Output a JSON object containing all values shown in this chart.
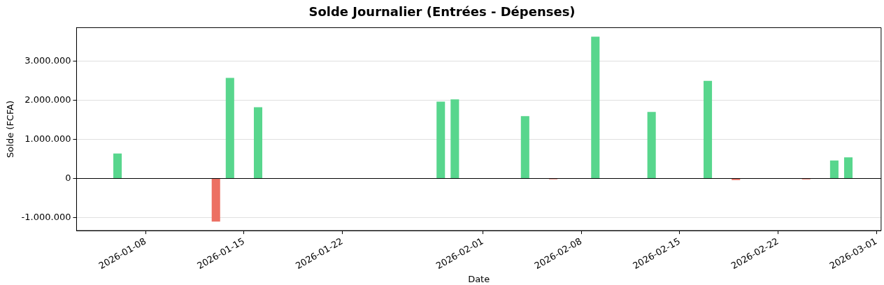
{
  "chart_data": {
    "type": "bar",
    "title": "Solde Journalier (Entrées - Dépenses)",
    "xlabel": "Date",
    "ylabel": "Solde (FCFA)",
    "x": [
      "2026-01-06",
      "2026-01-13",
      "2026-01-14",
      "2026-01-16",
      "2026-01-29",
      "2026-01-30",
      "2026-02-04",
      "2026-02-06",
      "2026-02-09",
      "2026-02-13",
      "2026-02-17",
      "2026-02-19",
      "2026-02-24",
      "2026-02-26",
      "2026-02-27"
    ],
    "values": [
      640000,
      -1100000,
      2570000,
      1820000,
      1960000,
      2020000,
      1590000,
      -20000,
      3620000,
      1700000,
      2490000,
      -40000,
      -20000,
      460000,
      540000
    ],
    "colors": [
      "#58d68d",
      "#ec7063",
      "#58d68d",
      "#58d68d",
      "#58d68d",
      "#58d68d",
      "#58d68d",
      "#ec7063",
      "#58d68d",
      "#58d68d",
      "#58d68d",
      "#ec7063",
      "#ec7063",
      "#58d68d",
      "#58d68d"
    ],
    "xlim": [
      "2026-01-03T02:00",
      "2026-03-01T08:00"
    ],
    "xticks": [
      {
        "value": "2026-01-08",
        "label": "2026-01-08"
      },
      {
        "value": "2026-01-15",
        "label": "2026-01-15"
      },
      {
        "value": "2026-01-22",
        "label": "2026-01-22"
      },
      {
        "value": "2026-02-01",
        "label": "2026-02-01"
      },
      {
        "value": "2026-02-08",
        "label": "2026-02-08"
      },
      {
        "value": "2026-02-15",
        "label": "2026-02-15"
      },
      {
        "value": "2026-02-22",
        "label": "2026-02-22"
      },
      {
        "value": "2026-03-01",
        "label": "2026-03-01"
      }
    ],
    "ylim": [
      -1330000,
      3850000
    ],
    "yticks": [
      {
        "value": -1000000,
        "label": "-1.000.000"
      },
      {
        "value": 0,
        "label": "0"
      },
      {
        "value": 1000000,
        "label": "1.000.000"
      },
      {
        "value": 2000000,
        "label": "2.000.000"
      },
      {
        "value": 3000000,
        "label": "3.000.000"
      }
    ],
    "ref_lines": [
      {
        "axis": "y",
        "value": 0,
        "color": "#000000"
      }
    ],
    "grid": "y",
    "legend": false
  }
}
